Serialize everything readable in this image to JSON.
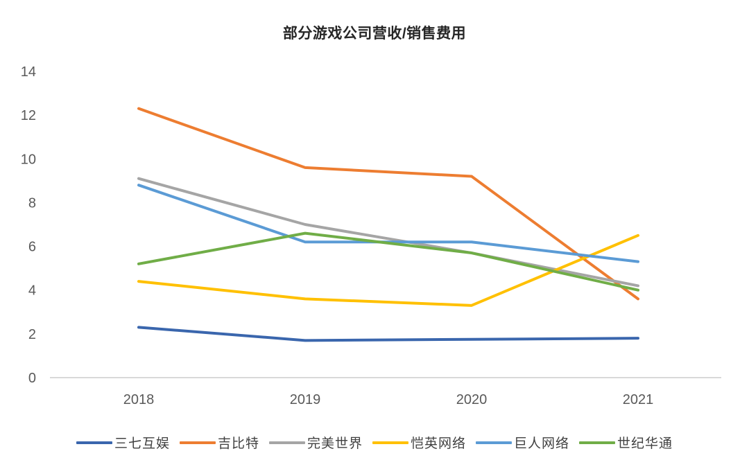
{
  "title": "部分游戏公司营收/销售费用",
  "chart_data": {
    "type": "line",
    "x": [
      "2018",
      "2019",
      "2020",
      "2021"
    ],
    "series": [
      {
        "name": "三七互娱",
        "color": "#3A66AD",
        "values": [
          2.3,
          1.7,
          1.75,
          1.8
        ]
      },
      {
        "name": "吉比特",
        "color": "#ED7D31",
        "values": [
          12.3,
          9.6,
          9.2,
          3.6
        ]
      },
      {
        "name": "完美世界",
        "color": "#A5A5A5",
        "values": [
          9.1,
          7.0,
          5.7,
          4.2
        ]
      },
      {
        "name": "恺英网络",
        "color": "#FFC000",
        "values": [
          4.4,
          3.6,
          3.3,
          6.5
        ]
      },
      {
        "name": "巨人网络",
        "color": "#5B9BD5",
        "values": [
          8.8,
          6.2,
          6.2,
          5.3
        ]
      },
      {
        "name": "世纪华通",
        "color": "#70AD47",
        "values": [
          5.2,
          6.6,
          5.7,
          4.0
        ]
      }
    ],
    "ylim": [
      0,
      14
    ],
    "yticks": [
      0,
      2,
      4,
      6,
      8,
      10,
      12,
      14
    ],
    "grid": false,
    "legend_position": "bottom",
    "axis_color": "#D9D9D9",
    "line_width": 4
  }
}
